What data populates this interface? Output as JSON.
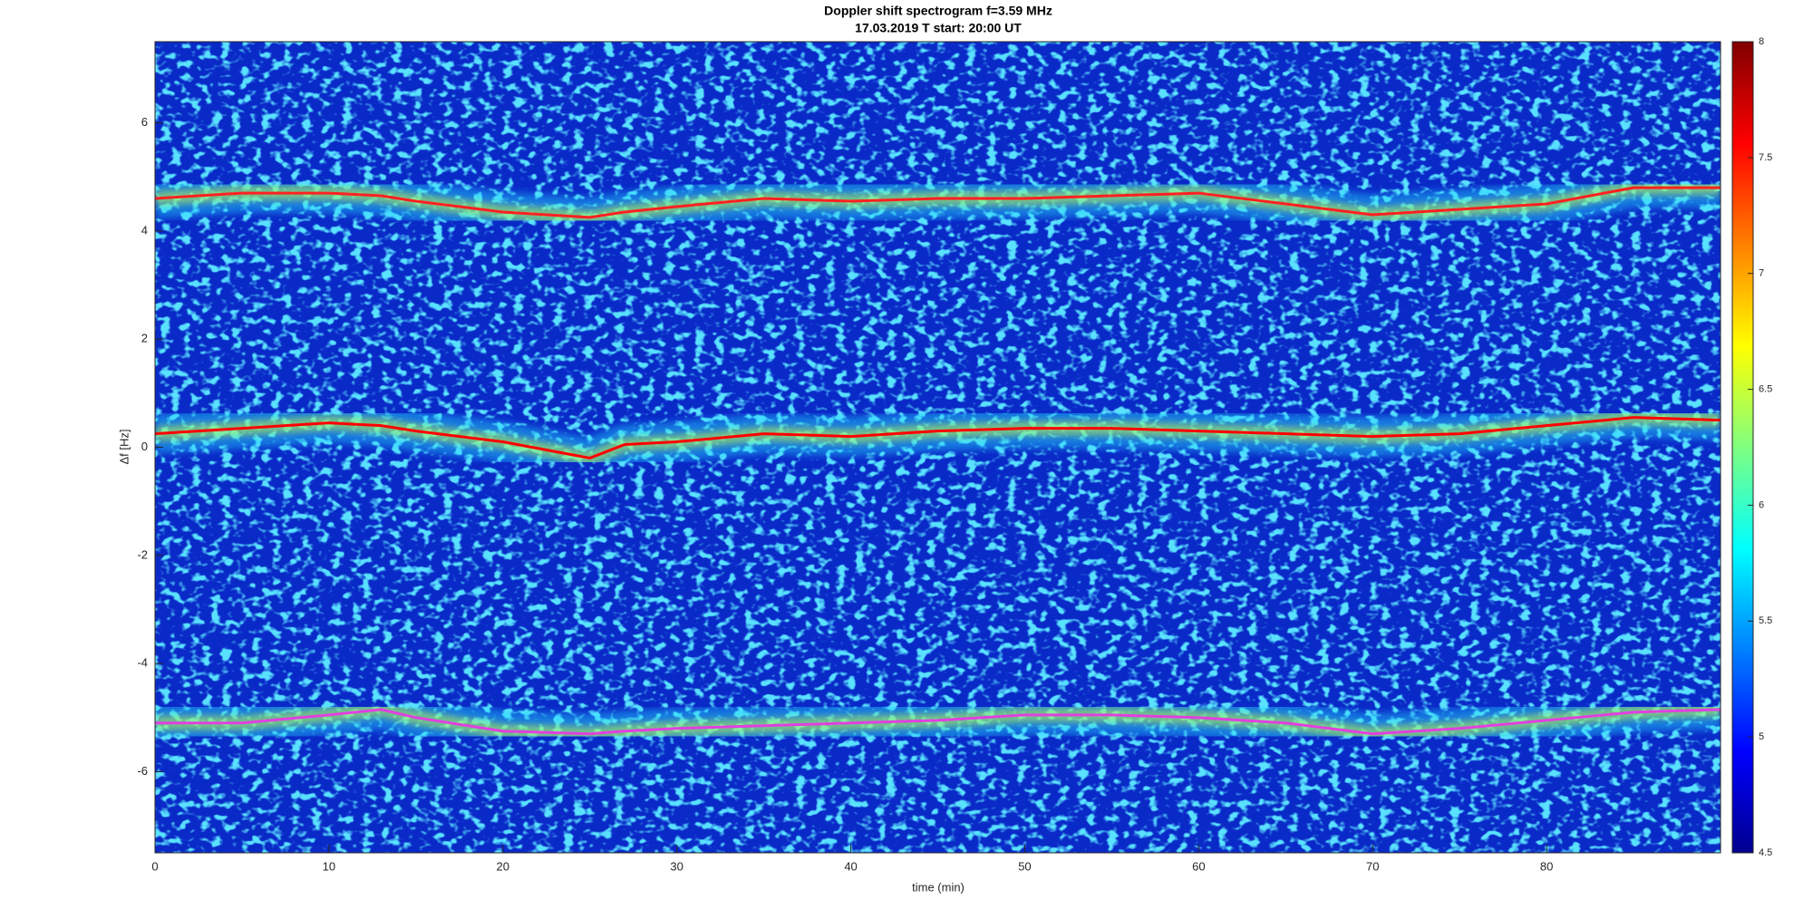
{
  "chart_data": {
    "type": "spectrogram",
    "title": [
      "Doppler shift spectrogram f=3.59 MHz",
      "17.03.2019    T start: 20:00 UT"
    ],
    "x_label": "time (min)",
    "y_label": "Δf [Hz]",
    "x": [
      0,
      5,
      10,
      13,
      15,
      20,
      25,
      27,
      30,
      35,
      40,
      45,
      50,
      55,
      60,
      65,
      70,
      75,
      80,
      85,
      90
    ],
    "series": [
      {
        "color": "#ff2020",
        "values": [
          4.6,
          4.7,
          4.7,
          4.65,
          4.55,
          4.35,
          4.25,
          4.35,
          4.45,
          4.6,
          4.55,
          4.6,
          4.6,
          4.65,
          4.7,
          4.5,
          4.3,
          4.4,
          4.5,
          4.8,
          4.8
        ]
      },
      {
        "color": "#ff0000",
        "values": [
          0.25,
          0.35,
          0.45,
          0.4,
          0.3,
          0.1,
          -0.2,
          0.05,
          0.1,
          0.25,
          0.2,
          0.3,
          0.35,
          0.35,
          0.3,
          0.25,
          0.2,
          0.25,
          0.4,
          0.55,
          0.5
        ]
      },
      {
        "color": "#e040e0",
        "values": [
          -5.1,
          -5.1,
          -4.95,
          -4.85,
          -5.0,
          -5.25,
          -5.3,
          -5.25,
          -5.2,
          -5.15,
          -5.1,
          -5.05,
          -4.95,
          -4.95,
          -5.0,
          -5.1,
          -5.3,
          -5.2,
          -5.05,
          -4.9,
          -4.85
        ]
      }
    ],
    "xlim": [
      0,
      90
    ],
    "xticks": [
      0,
      10,
      20,
      30,
      40,
      50,
      60,
      70,
      80
    ],
    "ylim": [
      -7.5,
      7.5
    ],
    "yticks": [
      -6,
      -4,
      -2,
      0,
      2,
      4,
      6
    ],
    "clim": [
      4.5,
      8
    ],
    "cticks": [
      4.5,
      5,
      5.5,
      6,
      6.5,
      7,
      7.5,
      8
    ]
  }
}
